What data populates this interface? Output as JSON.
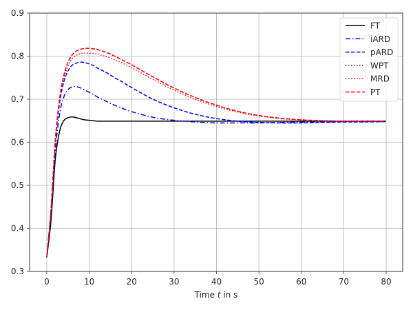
{
  "chart_data": {
    "type": "line",
    "title": "",
    "xlabel": "Time t in s",
    "xlabel_parts": {
      "prefix": "Time ",
      "var": "t",
      "suffix": " in s"
    },
    "ylabel": "",
    "xlim": [
      -4.1,
      84.1
    ],
    "ylim": [
      0.3,
      0.9
    ],
    "xticks": [
      0,
      10,
      20,
      30,
      40,
      50,
      60,
      70,
      80
    ],
    "yticks": [
      0.3,
      0.4,
      0.5,
      0.6,
      0.7,
      0.8,
      0.9
    ],
    "xtick_labels": [
      "0",
      "10",
      "20",
      "30",
      "40",
      "50",
      "60",
      "70",
      "80"
    ],
    "ytick_labels": [
      "0.3",
      "0.4",
      "0.5",
      "0.6",
      "0.7",
      "0.8",
      "0.9"
    ],
    "grid": true,
    "legend_position": "upper right",
    "x": [
      0,
      1,
      2,
      3,
      4,
      5,
      6,
      7,
      8,
      9,
      10,
      11,
      12,
      14,
      16,
      18,
      20,
      25,
      30,
      35,
      40,
      45,
      50,
      55,
      60,
      65,
      70,
      75,
      80
    ],
    "series": [
      {
        "name": "FT",
        "color": "#000000",
        "style": "solid",
        "values": [
          0.333,
          0.42,
          0.56,
          0.625,
          0.65,
          0.657,
          0.659,
          0.657,
          0.654,
          0.652,
          0.651,
          0.65,
          0.649,
          0.649,
          0.649,
          0.649,
          0.649,
          0.649,
          0.649,
          0.649,
          0.649,
          0.649,
          0.649,
          0.649,
          0.649,
          0.649,
          0.649,
          0.649,
          0.649
        ]
      },
      {
        "name": "iARD",
        "color": "#0000ff",
        "style": "dashdot",
        "values": [
          0.333,
          0.44,
          0.58,
          0.665,
          0.705,
          0.722,
          0.729,
          0.729,
          0.726,
          0.721,
          0.716,
          0.711,
          0.705,
          0.695,
          0.686,
          0.678,
          0.671,
          0.658,
          0.651,
          0.647,
          0.645,
          0.645,
          0.645,
          0.646,
          0.647,
          0.647,
          0.648,
          0.648,
          0.648
        ]
      },
      {
        "name": "pARD",
        "color": "#0000ff",
        "style": "dashed",
        "values": [
          0.333,
          0.445,
          0.6,
          0.69,
          0.74,
          0.766,
          0.779,
          0.784,
          0.786,
          0.785,
          0.782,
          0.778,
          0.772,
          0.762,
          0.75,
          0.739,
          0.727,
          0.7,
          0.68,
          0.665,
          0.655,
          0.649,
          0.646,
          0.645,
          0.645,
          0.646,
          0.647,
          0.647,
          0.648
        ]
      },
      {
        "name": "WPT",
        "color": "#0000ff",
        "style": "dotted",
        "values": [
          0.333,
          0.445,
          0.605,
          0.7,
          0.755,
          0.786,
          0.803,
          0.812,
          0.816,
          0.818,
          0.818,
          0.817,
          0.815,
          0.809,
          0.8,
          0.79,
          0.78,
          0.752,
          0.726,
          0.704,
          0.686,
          0.672,
          0.662,
          0.656,
          0.652,
          0.65,
          0.649,
          0.649,
          0.649
        ]
      },
      {
        "name": "MRD",
        "color": "#ff0000",
        "style": "dotted",
        "values": [
          0.333,
          0.445,
          0.6,
          0.695,
          0.748,
          0.777,
          0.794,
          0.802,
          0.806,
          0.807,
          0.807,
          0.806,
          0.804,
          0.799,
          0.792,
          0.783,
          0.773,
          0.746,
          0.721,
          0.7,
          0.683,
          0.67,
          0.661,
          0.655,
          0.652,
          0.65,
          0.649,
          0.649,
          0.649
        ]
      },
      {
        "name": "PT",
        "color": "#ff0000",
        "style": "dashed",
        "values": [
          0.333,
          0.445,
          0.605,
          0.7,
          0.755,
          0.786,
          0.803,
          0.812,
          0.816,
          0.818,
          0.818,
          0.817,
          0.815,
          0.809,
          0.8,
          0.79,
          0.78,
          0.752,
          0.726,
          0.704,
          0.686,
          0.672,
          0.662,
          0.656,
          0.652,
          0.65,
          0.649,
          0.649,
          0.649
        ]
      }
    ]
  },
  "legend": {
    "items": [
      {
        "label": "FT"
      },
      {
        "label": "iARD"
      },
      {
        "label": "pARD"
      },
      {
        "label": "WPT"
      },
      {
        "label": "MRD"
      },
      {
        "label": "PT"
      }
    ]
  }
}
